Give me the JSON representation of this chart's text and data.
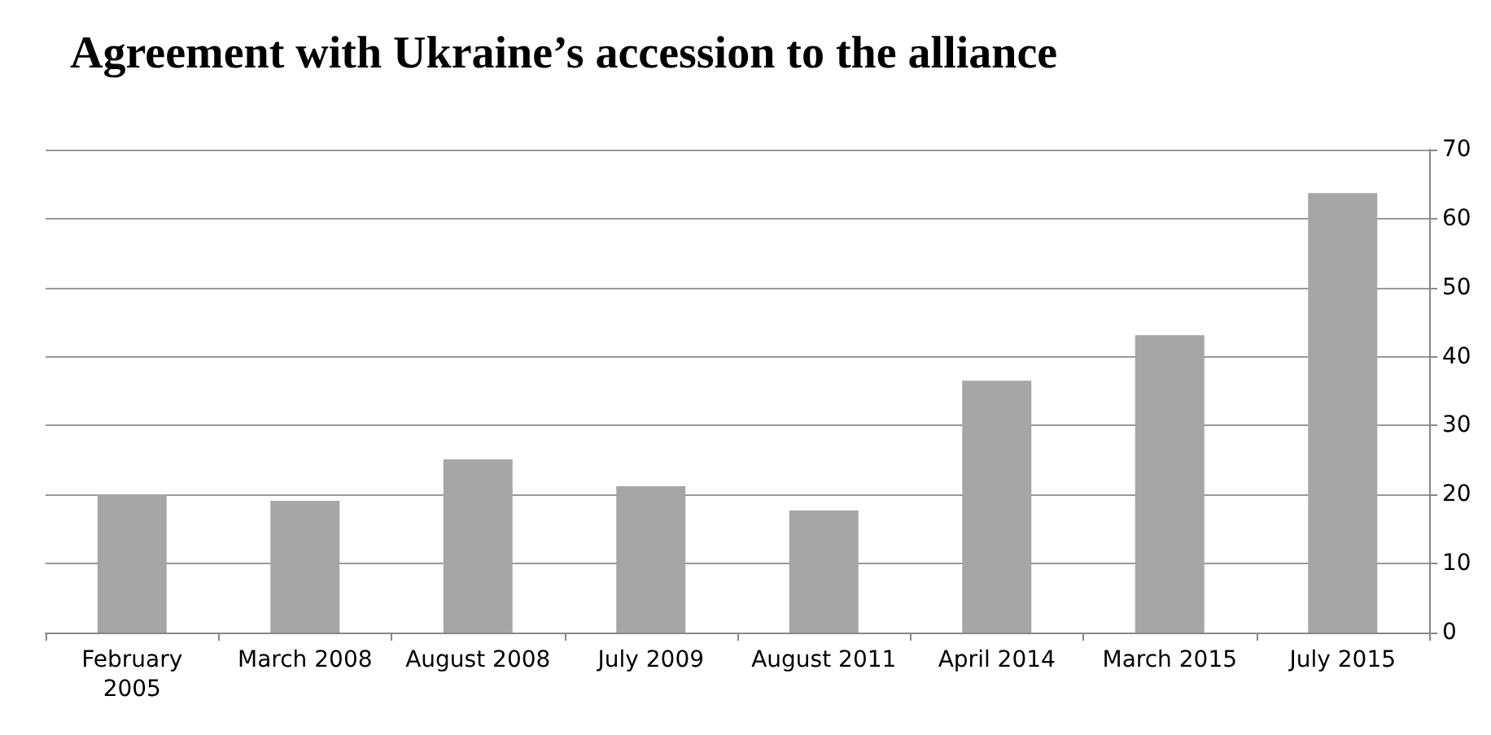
{
  "chart_data": {
    "type": "bar",
    "title": "Agreement with Ukraine’s accession to the alliance",
    "categories": [
      "February 2005",
      "March 2008",
      "August 2008",
      "July 2009",
      "August 2011",
      "April 2014",
      "March 2015",
      "July 2015"
    ],
    "values": [
      20,
      19.1,
      25.1,
      21.2,
      17.7,
      36.5,
      43.1,
      63.7
    ],
    "color": "#a6a6a6",
    "ylim": [
      0,
      70
    ],
    "yticks": [
      0,
      10,
      20,
      30,
      40,
      50,
      60,
      70
    ],
    "grid": "y"
  }
}
